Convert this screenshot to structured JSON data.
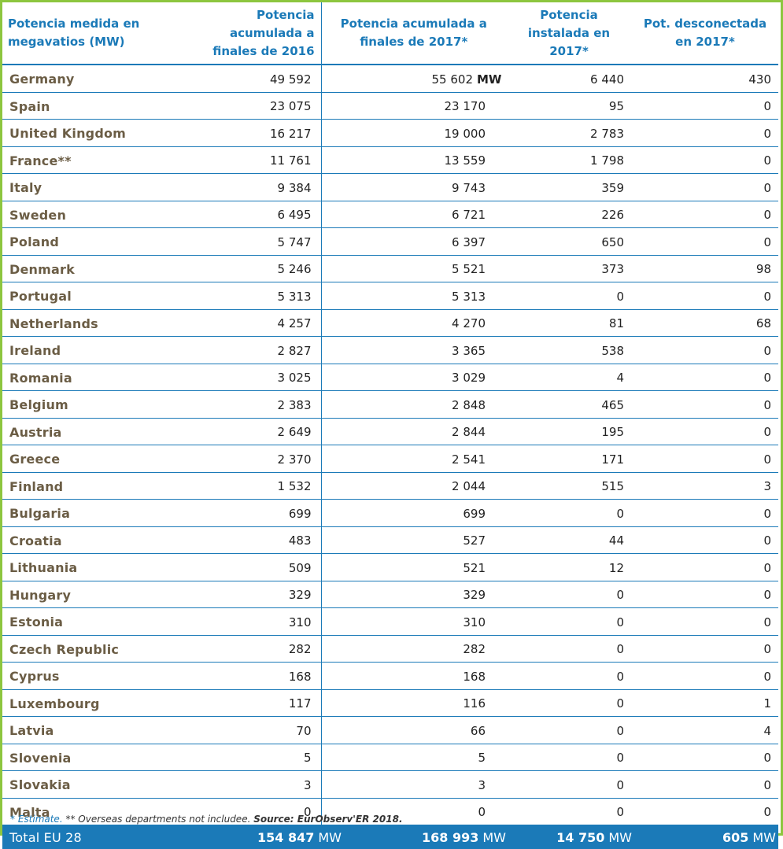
{
  "headers": {
    "col0": "Potencia medida en megavatios (MW)",
    "col1": "Potencia acumulada a finales de 2016",
    "col2": "Potencia acumulada a finales de 2017*",
    "col3": "Potencia instalada en 2017*",
    "col4": "Pot. desconectada en 2017*"
  },
  "rows": [
    {
      "country": "Germany",
      "v2016": "49 592",
      "v2017": "55 602",
      "unit": "MW",
      "installed": "6 440",
      "disconnected": "430"
    },
    {
      "country": "Spain",
      "v2016": "23 075",
      "v2017": "23 170",
      "installed": "95",
      "disconnected": "0"
    },
    {
      "country": "United Kingdom",
      "v2016": "16 217",
      "v2017": "19 000",
      "installed": "2 783",
      "disconnected": "0"
    },
    {
      "country": "France**",
      "v2016": "11 761",
      "v2017": "13 559",
      "installed": "1 798",
      "disconnected": "0"
    },
    {
      "country": "Italy",
      "v2016": "9 384",
      "v2017": "9 743",
      "installed": "359",
      "disconnected": "0"
    },
    {
      "country": "Sweden",
      "v2016": "6 495",
      "v2017": "6 721",
      "installed": "226",
      "disconnected": "0"
    },
    {
      "country": "Poland",
      "v2016": "5 747",
      "v2017": "6 397",
      "installed": "650",
      "disconnected": "0"
    },
    {
      "country": "Denmark",
      "v2016": "5 246",
      "v2017": "5 521",
      "installed": "373",
      "disconnected": "98"
    },
    {
      "country": "Portugal",
      "v2016": "5 313",
      "v2017": "5 313",
      "installed": "0",
      "disconnected": "0"
    },
    {
      "country": "Netherlands",
      "v2016": "4 257",
      "v2017": "4 270",
      "installed": "81",
      "disconnected": "68"
    },
    {
      "country": "Ireland",
      "v2016": "2 827",
      "v2017": "3 365",
      "installed": "538",
      "disconnected": "0"
    },
    {
      "country": "Romania",
      "v2016": "3 025",
      "v2017": "3 029",
      "installed": "4",
      "disconnected": "0"
    },
    {
      "country": "Belgium",
      "v2016": "2 383",
      "v2017": "2 848",
      "installed": "465",
      "disconnected": "0"
    },
    {
      "country": "Austria",
      "v2016": "2 649",
      "v2017": "2 844",
      "installed": "195",
      "disconnected": "0"
    },
    {
      "country": "Greece",
      "v2016": "2 370",
      "v2017": "2 541",
      "installed": "171",
      "disconnected": "0"
    },
    {
      "country": "Finland",
      "v2016": "1 532",
      "v2017": "2 044",
      "installed": "515",
      "disconnected": "3"
    },
    {
      "country": "Bulgaria",
      "v2016": "699",
      "v2017": "699",
      "installed": "0",
      "disconnected": "0"
    },
    {
      "country": "Croatia",
      "v2016": "483",
      "v2017": "527",
      "installed": "44",
      "disconnected": "0"
    },
    {
      "country": "Lithuania",
      "v2016": "509",
      "v2017": "521",
      "installed": "12",
      "disconnected": "0"
    },
    {
      "country": "Hungary",
      "v2016": "329",
      "v2017": "329",
      "installed": "0",
      "disconnected": "0"
    },
    {
      "country": "Estonia",
      "v2016": "310",
      "v2017": "310",
      "installed": "0",
      "disconnected": "0"
    },
    {
      "country": "Czech Republic",
      "v2016": "282",
      "v2017": "282",
      "installed": "0",
      "disconnected": "0"
    },
    {
      "country": "Cyprus",
      "v2016": "168",
      "v2017": "168",
      "installed": "0",
      "disconnected": "0"
    },
    {
      "country": "Luxembourg",
      "v2016": "117",
      "v2017": "116",
      "installed": "0",
      "disconnected": "1"
    },
    {
      "country": "Latvia",
      "v2016": "70",
      "v2017": "66",
      "installed": "0",
      "disconnected": "4"
    },
    {
      "country": "Slovenia",
      "v2016": "5",
      "v2017": "5",
      "installed": "0",
      "disconnected": "0"
    },
    {
      "country": "Slovakia",
      "v2016": "3",
      "v2017": "3",
      "installed": "0",
      "disconnected": "0"
    },
    {
      "country": "Malta",
      "v2016": "0",
      "v2017": "0",
      "installed": "0",
      "disconnected": "0"
    }
  ],
  "total": {
    "label": "Total EU 28",
    "v2016": "154 847",
    "v2017": "168 993",
    "installed": "14 750",
    "disconnected": "605",
    "unit": "MW"
  },
  "footnote": {
    "estimate": "* Estimate.",
    "overseas": " ** Overseas departments not includee. ",
    "source": "Source: EurObserv'ER 2018."
  },
  "colors": {
    "accent": "#1b7ab8",
    "frame": "#8dc63f",
    "country_text": "#6b5d45"
  }
}
